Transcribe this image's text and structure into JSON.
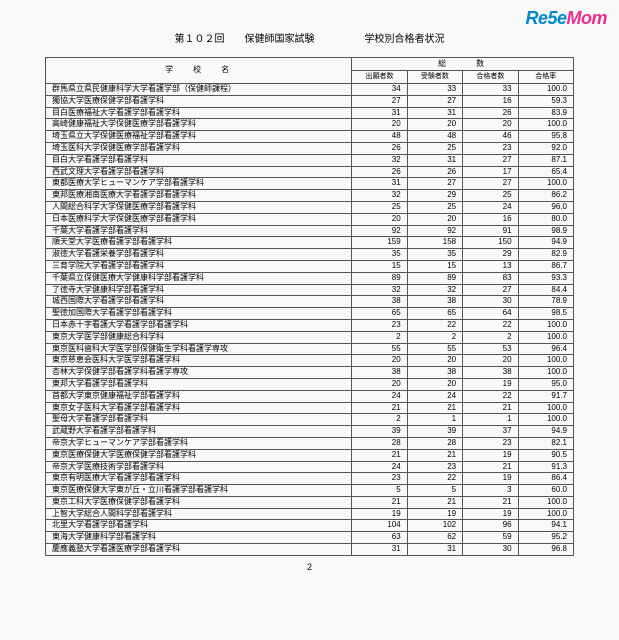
{
  "watermark": {
    "re": "Re5e",
    "mom": "Mom"
  },
  "title": "第１０２回　　保健師国家試験　　　　　学校別合格者状況",
  "headers": {
    "school": "学校名",
    "group": "総数",
    "c1": "出願者数",
    "c2": "受験者数",
    "c3": "合格者数",
    "c4": "合格率"
  },
  "rows": [
    {
      "name": "群馬県立県民健康科学大学看護学部（保健師課程）",
      "a": 34,
      "b": 33,
      "c": 33,
      "d": "100.0"
    },
    {
      "name": "獨協大学医療保健学部看護学科",
      "a": 27,
      "b": 27,
      "c": 16,
      "d": "59.3"
    },
    {
      "name": "目白医療福祉大学看護学部看護学科",
      "a": 31,
      "b": 31,
      "c": 26,
      "d": "83.9"
    },
    {
      "name": "高崎健康福祉大学保健医療学部看護学科",
      "a": 20,
      "b": 20,
      "c": 20,
      "d": "100.0"
    },
    {
      "name": "埼玉県立大学保健医療福祉学部看護学科",
      "a": 48,
      "b": 48,
      "c": 46,
      "d": "95.8"
    },
    {
      "name": "埼玉医科大学保健医療学部看護学科",
      "a": 26,
      "b": 25,
      "c": 23,
      "d": "92.0"
    },
    {
      "name": "目白大学看護学部看護学科",
      "a": 32,
      "b": 31,
      "c": 27,
      "d": "87.1"
    },
    {
      "name": "西武文理大学看護学部看護学科",
      "a": 26,
      "b": 26,
      "c": 17,
      "d": "65.4"
    },
    {
      "name": "東都医療大学ヒューマンケア学部看護学科",
      "a": 31,
      "b": 27,
      "c": 27,
      "d": "100.0"
    },
    {
      "name": "東邦医療湘南医療大学看護学部看護学科",
      "a": 32,
      "b": 29,
      "c": 25,
      "d": "86.2"
    },
    {
      "name": "人間総合科学大学保健医療学部看護学科",
      "a": 25,
      "b": 25,
      "c": 24,
      "d": "96.0"
    },
    {
      "name": "日本医療科学大学保健医療学部看護学科",
      "a": 20,
      "b": 20,
      "c": 16,
      "d": "80.0"
    },
    {
      "name": "千葉大学看護学部看護学科",
      "a": 92,
      "b": 92,
      "c": 91,
      "d": "98.9"
    },
    {
      "name": "順天堂大学医療看護学部看護学科",
      "a": 159,
      "b": 158,
      "c": 150,
      "d": "94.9"
    },
    {
      "name": "淑徳大学看護栄養学部看護学科",
      "a": 35,
      "b": 35,
      "c": 29,
      "d": "82.9"
    },
    {
      "name": "三育学院大学看護学部看護学科",
      "a": 15,
      "b": 15,
      "c": 13,
      "d": "86.7"
    },
    {
      "name": "千葉県立保健医療大学健康科学部看護学科",
      "a": 89,
      "b": 89,
      "c": 83,
      "d": "93.3"
    },
    {
      "name": "了徳寺大学健康科学部看護学科",
      "a": 32,
      "b": 32,
      "c": 27,
      "d": "84.4"
    },
    {
      "name": "城西国際大学看護学部看護学科",
      "a": 38,
      "b": 38,
      "c": 30,
      "d": "78.9"
    },
    {
      "name": "聖徳加国際大学看護学部看護学科",
      "a": 65,
      "b": 65,
      "c": 64,
      "d": "98.5"
    },
    {
      "name": "日本赤十字看護大学看護学部看護学科",
      "a": 23,
      "b": 22,
      "c": 22,
      "d": "100.0"
    },
    {
      "name": "東京大学医学部健康総合科学科",
      "a": 2,
      "b": 2,
      "c": 2,
      "d": "100.0"
    },
    {
      "name": "東京医科歯科大学医学部保健衛生学科看護学専攻",
      "a": 55,
      "b": 55,
      "c": 53,
      "d": "96.4"
    },
    {
      "name": "東京慈恵会医科大学医学部看護学科",
      "a": 20,
      "b": 20,
      "c": 20,
      "d": "100.0"
    },
    {
      "name": "杏林大学保健学部看護学科看護学専攻",
      "a": 38,
      "b": 38,
      "c": 38,
      "d": "100.0"
    },
    {
      "name": "東邦大学看護学部看護学科",
      "a": 20,
      "b": 20,
      "c": 19,
      "d": "95.0"
    },
    {
      "name": "首都大学東京健康福祉学部看護学科",
      "a": 24,
      "b": 24,
      "c": 22,
      "d": "91.7"
    },
    {
      "name": "東京女子医科大学看護学部看護学科",
      "a": 21,
      "b": 21,
      "c": 21,
      "d": "100.0"
    },
    {
      "name": "聖母大学看護学部看護学科",
      "a": 2,
      "b": 1,
      "c": 1,
      "d": "100.0"
    },
    {
      "name": "武蔵野大学看護学部看護学科",
      "a": 39,
      "b": 39,
      "c": 37,
      "d": "94.9"
    },
    {
      "name": "帝京大学ヒューマンケア学部看護学科",
      "a": 28,
      "b": 28,
      "c": 23,
      "d": "82.1"
    },
    {
      "name": "東京医療保健大学医療保健学部看護学科",
      "a": 21,
      "b": 21,
      "c": 19,
      "d": "90.5"
    },
    {
      "name": "帝京大学医療技術学部看護学科",
      "a": 24,
      "b": 23,
      "c": 21,
      "d": "91.3"
    },
    {
      "name": "東京有明医療大学看護学部看護学科",
      "a": 23,
      "b": 22,
      "c": 19,
      "d": "86.4"
    },
    {
      "name": "東京医療保健大学東が丘・立川看護学部看護学科",
      "a": 5,
      "b": 5,
      "c": 3,
      "d": "60.0"
    },
    {
      "name": "東京工科大学医療保健学部看護学科",
      "a": 21,
      "b": 21,
      "c": 21,
      "d": "100.0"
    },
    {
      "name": "上智大学総合人間科学部看護学科",
      "a": 19,
      "b": 19,
      "c": 19,
      "d": "100.0"
    },
    {
      "name": "北里大学看護学部看護学科",
      "a": 104,
      "b": 102,
      "c": 96,
      "d": "94.1"
    },
    {
      "name": "東海大学健康科学部看護学科",
      "a": 63,
      "b": 62,
      "c": 59,
      "d": "95.2"
    },
    {
      "name": "慶應義塾大学看護医療学部看護学科",
      "a": 31,
      "b": 31,
      "c": 30,
      "d": "96.8"
    }
  ],
  "pagenum": "2"
}
